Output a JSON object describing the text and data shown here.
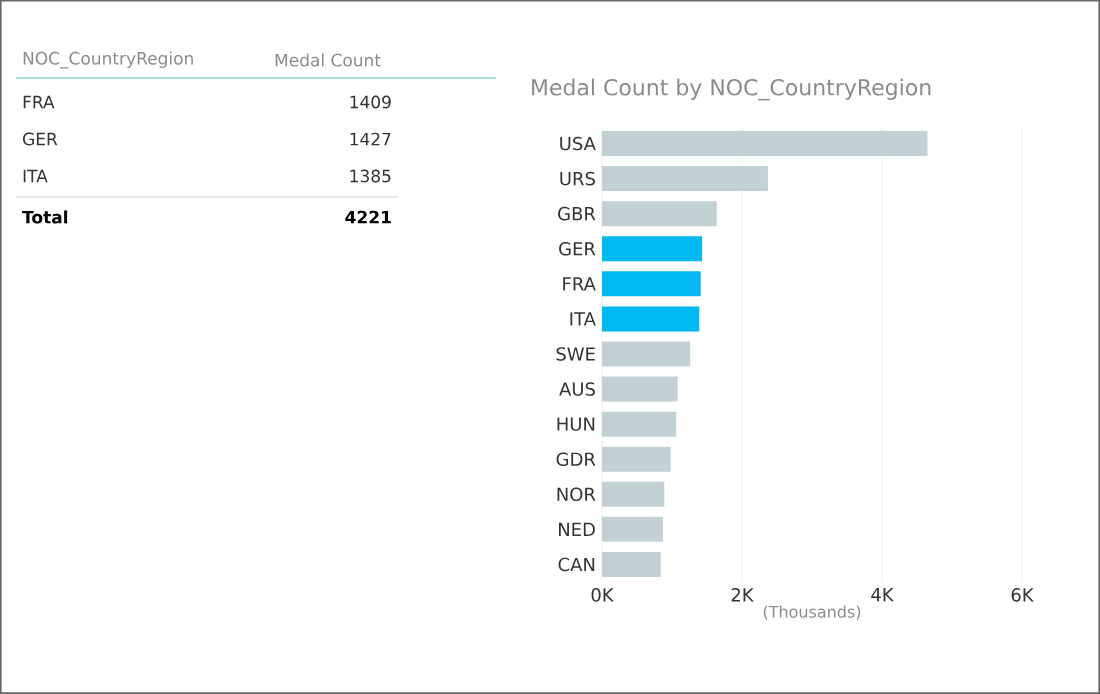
{
  "chart_data": [
    {
      "type": "other",
      "xlabel": "NOC_CountryRegion",
      "ylabel": "Medal Count",
      "categories": [
        "FRA",
        "GER",
        "ITA"
      ],
      "values": [
        1409,
        1427,
        1385
      ],
      "data_labels": true,
      "annotations": [
        "Total",
        "4221"
      ]
    },
    {
      "type": "bar",
      "orientation": "horizontal",
      "title": "Medal Count by NOC_CountryRegion",
      "xlabel": "(Thousands)",
      "categories": [
        "USA",
        "URS",
        "GBR",
        "GER",
        "FRA",
        "ITA",
        "SWE",
        "AUS",
        "HUN",
        "GDR",
        "NOR",
        "NED",
        "CAN"
      ],
      "values": [
        4.65,
        2.37,
        1.64,
        1.43,
        1.41,
        1.39,
        1.26,
        1.08,
        1.06,
        0.98,
        0.89,
        0.87,
        0.84
      ],
      "colors": [
        "#c2d1d3",
        "#c2d1d3",
        "#c2d1d3",
        "#01b8f0",
        "#01b8f0",
        "#01b8f0",
        "#c2d1d3",
        "#c2d1d3",
        "#c2d1d3",
        "#c2d1d3",
        "#c2d1d3",
        "#c2d1d3",
        "#c2d1d3"
      ],
      "xlim": [
        0,
        6
      ],
      "xticks": [
        {
          "value": 0,
          "label": "0K"
        },
        {
          "value": 2,
          "label": "2K"
        },
        {
          "value": 4,
          "label": "4K"
        },
        {
          "value": 6,
          "label": "6K"
        }
      ],
      "grid": "x"
    }
  ]
}
